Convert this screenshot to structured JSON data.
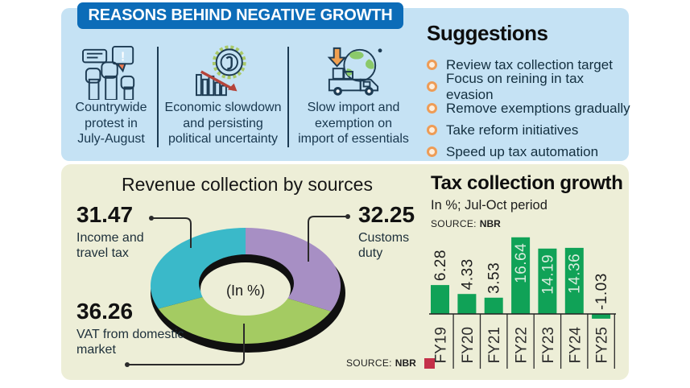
{
  "header": {
    "title": "REASONS BEHIND NEGATIVE GROWTH"
  },
  "reasons": {
    "items": [
      {
        "icon": "protest-fists-icon",
        "caption": "Countrywide\nprotest in\nJuly-August"
      },
      {
        "icon": "economic-decline-coin-icon",
        "caption": "Economic slowdown\nand persisting\npolitical uncertainty"
      },
      {
        "icon": "import-truck-globe-icon",
        "caption": "Slow import and\nexemption on\nimport of essentials"
      }
    ]
  },
  "suggestions": {
    "title": "Suggestions",
    "items": [
      "Review tax collection target",
      "Focus on reining in tax evasion",
      "Remove exemptions gradually",
      "Take reform initiatives",
      "Speed up tax automation"
    ]
  },
  "revenue": {
    "title": "Revenue collection by sources",
    "center_label": "(In %)",
    "source_label": "SOURCE:",
    "source_value": "NBR",
    "labels": [
      {
        "value": "31.47",
        "caption": "Income and\ntravel tax"
      },
      {
        "value": "32.25",
        "caption": "Customs\nduty"
      },
      {
        "value": "36.26",
        "caption": "VAT from domestic\nmarket"
      }
    ]
  },
  "tax_growth": {
    "title": "Tax collection growth",
    "subtitle": "In %; Jul-Oct period",
    "source_label": "SOURCE:",
    "source_value": "NBR"
  },
  "colors": {
    "header_blue": "#0c6cb8",
    "panel_blue": "#c5e2f4",
    "panel_olive": "#edeed7",
    "bullet_orange": "#ee9c56",
    "source_red": "#c43049",
    "dark_navy_text": "#18374e"
  },
  "chart_data": [
    {
      "type": "pie",
      "title": "Revenue collection by sources",
      "center_label": "(In %)",
      "unit": "%",
      "source": "NBR",
      "slices": [
        {
          "label": "Customs duty",
          "value": 32.25,
          "color": "#a78fc4"
        },
        {
          "label": "VAT from domestic market",
          "value": 36.26,
          "color": "#a4cb62"
        },
        {
          "label": "Income and travel tax",
          "value": 31.47,
          "color": "#3ab9c9"
        }
      ]
    },
    {
      "type": "bar",
      "title": "Tax collection growth",
      "subtitle": "In %; Jul-Oct period",
      "source": "NBR",
      "categories": [
        "FY19",
        "FY20",
        "FY21",
        "FY22",
        "FY23",
        "FY24",
        "FY25"
      ],
      "values": [
        6.28,
        4.33,
        3.53,
        16.64,
        14.19,
        14.36,
        -1.03
      ],
      "bar_color": "#10a257",
      "ylabel": "",
      "ylim": [
        -2,
        18
      ],
      "grid": false,
      "legend": false
    }
  ]
}
